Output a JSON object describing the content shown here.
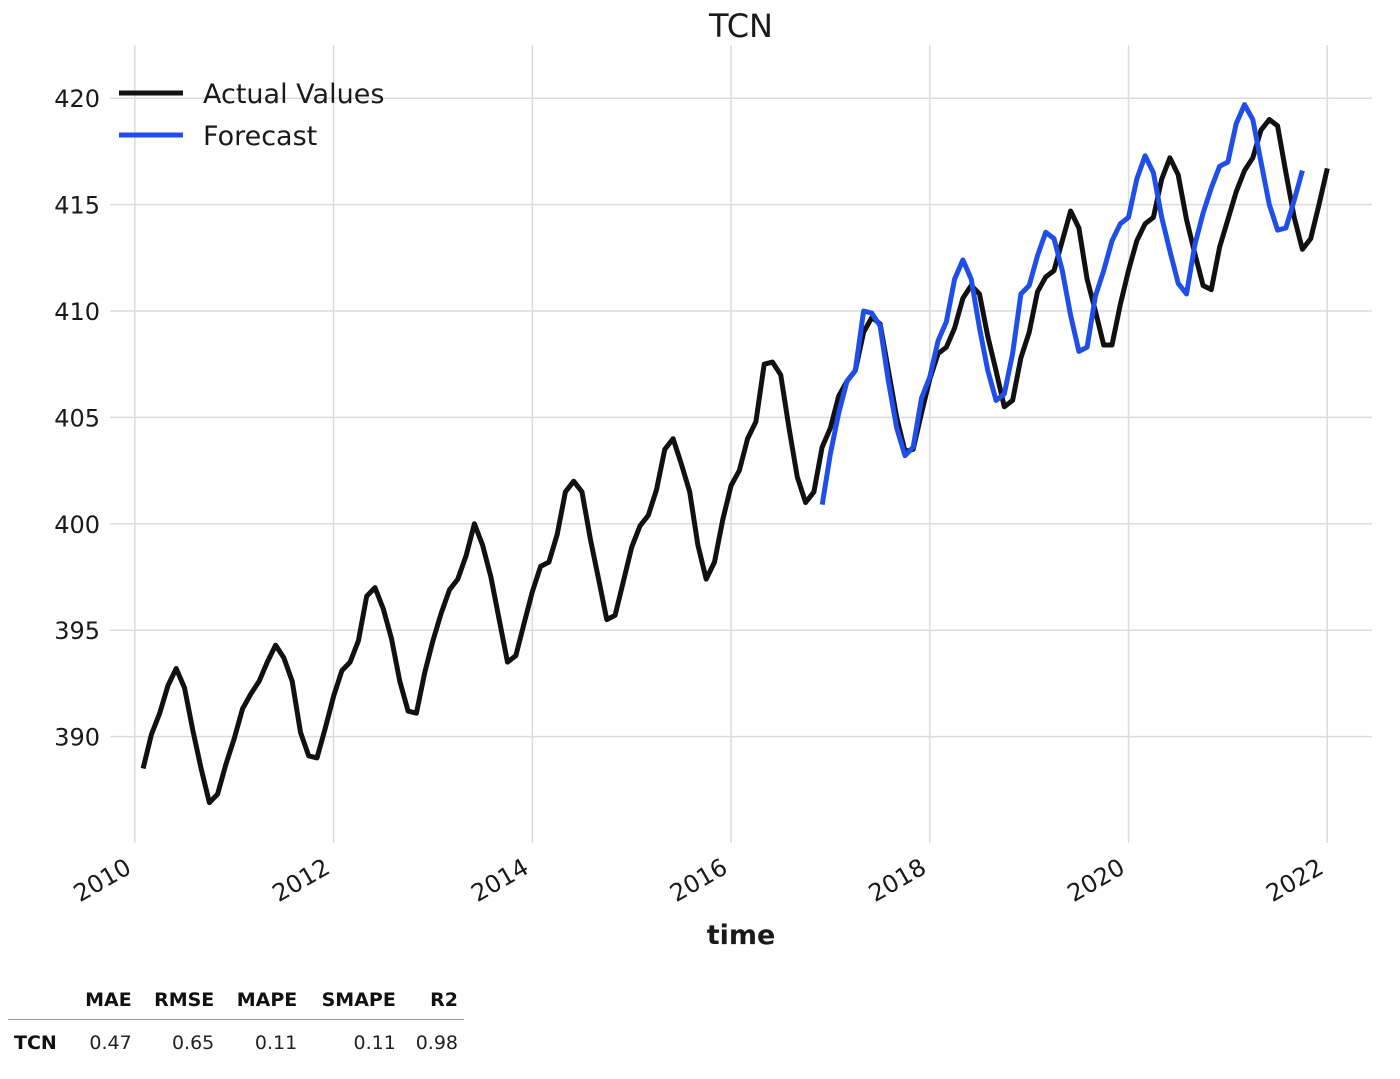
{
  "chart_data": {
    "type": "line",
    "title": "TCN",
    "xlabel": "time",
    "ylabel": "",
    "xlim": [
      2009.75,
      2022.45
    ],
    "ylim": [
      385,
      422.5
    ],
    "x_ticks": [
      2010,
      2012,
      2014,
      2016,
      2018,
      2020,
      2022
    ],
    "y_ticks": [
      390,
      395,
      400,
      405,
      410,
      415,
      420
    ],
    "grid": true,
    "legend_position": "top-left",
    "series": [
      {
        "name": "Actual Values",
        "color": "#111111",
        "x_start": 2010.0833,
        "step": 0.0833333,
        "values": [
          388.5,
          390.1,
          391.1,
          392.4,
          393.2,
          392.3,
          390.3,
          388.5,
          386.9,
          387.3,
          388.7,
          389.9,
          391.3,
          392.0,
          392.6,
          393.5,
          394.3,
          393.7,
          392.6,
          390.2,
          389.1,
          389.0,
          390.4,
          391.9,
          393.1,
          393.5,
          394.5,
          396.6,
          397.0,
          396.0,
          394.6,
          392.6,
          391.2,
          391.1,
          393.0,
          394.5,
          395.8,
          396.9,
          397.4,
          398.5,
          400.0,
          399.0,
          397.5,
          395.5,
          393.5,
          393.8,
          395.3,
          396.8,
          398.0,
          398.2,
          399.5,
          401.5,
          402.0,
          401.5,
          399.3,
          397.4,
          395.5,
          395.7,
          397.3,
          398.9,
          399.9,
          400.4,
          401.6,
          403.5,
          404.0,
          402.8,
          401.5,
          399.0,
          397.4,
          398.2,
          400.2,
          401.8,
          402.5,
          404.0,
          404.8,
          407.5,
          407.6,
          407.0,
          404.5,
          402.2,
          401.0,
          401.5,
          403.6,
          404.5,
          406.0,
          406.7,
          407.2,
          409.0,
          409.7,
          409.4,
          407.2,
          405.0,
          403.4,
          403.5,
          405.2,
          406.8,
          408.0,
          408.3,
          409.2,
          410.6,
          411.2,
          410.8,
          408.8,
          407.2,
          405.5,
          405.8,
          407.8,
          409.0,
          410.9,
          411.6,
          411.9,
          413.3,
          414.7,
          413.9,
          411.5,
          410.0,
          408.4,
          408.4,
          410.3,
          411.9,
          413.3,
          414.1,
          414.4,
          416.2,
          417.2,
          416.4,
          414.3,
          412.7,
          411.2,
          411.0,
          413.0,
          414.3,
          415.6,
          416.6,
          417.2,
          418.5,
          419.0,
          418.7,
          416.5,
          414.4,
          412.9,
          413.4,
          415.0,
          416.7
        ]
      },
      {
        "name": "Forecast",
        "color": "#1f4fe8",
        "x_start": 2016.9167,
        "step": 0.0833333,
        "values": [
          400.9,
          403.3,
          405.2,
          406.7,
          407.2,
          410.0,
          409.9,
          409.3,
          406.7,
          404.5,
          403.2,
          403.6,
          405.9,
          406.9,
          408.6,
          409.5,
          411.5,
          412.4,
          411.5,
          409.2,
          407.2,
          405.8,
          406.1,
          408.0,
          410.8,
          411.2,
          412.6,
          413.7,
          413.4,
          411.9,
          409.8,
          408.1,
          408.3,
          410.7,
          411.9,
          413.3,
          414.1,
          414.4,
          416.2,
          417.3,
          416.5,
          414.4,
          412.8,
          411.3,
          410.8,
          413.1,
          414.6,
          415.8,
          416.8,
          417.0,
          418.8,
          419.7,
          419.0,
          417.0,
          415.0,
          413.8,
          413.9,
          415.2,
          416.6
        ]
      }
    ]
  },
  "metrics_table": {
    "columns": [
      "",
      "MAE",
      "RMSE",
      "MAPE",
      "SMAPE",
      "R2"
    ],
    "rows": [
      {
        "label": "TCN",
        "values": [
          "0.47",
          "0.65",
          "0.11",
          "0.11",
          "0.98"
        ]
      }
    ]
  }
}
